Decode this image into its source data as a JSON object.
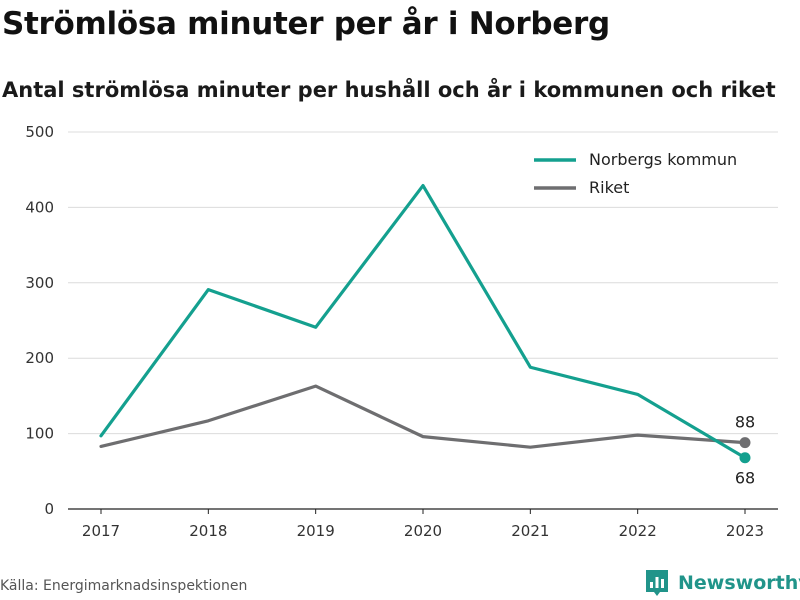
{
  "title": "Strömlösa minuter per år i Norberg",
  "subtitle": "Antal strömlösa minuter per hushåll och år i kommunen och riket",
  "source": "Källa: Energimarknadsinspektionen",
  "brand": {
    "name": "Newsworthy",
    "icon": "newsworthy-logo-icon",
    "color": "#21948a"
  },
  "chart_data": {
    "type": "line",
    "x": [
      "2017",
      "2018",
      "2019",
      "2020",
      "2021",
      "2022",
      "2023"
    ],
    "ylim": [
      0,
      500
    ],
    "yticks": [
      0,
      100,
      200,
      300,
      400,
      500
    ],
    "grid": true,
    "legend_position": "top-right",
    "series": [
      {
        "name": "Norbergs kommun",
        "color": "#14a08f",
        "values": [
          97,
          291,
          241,
          429,
          188,
          152,
          68
        ]
      },
      {
        "name": "Riket",
        "color": "#6e6e70",
        "values": [
          83,
          117,
          163,
          96,
          82,
          98,
          88
        ]
      }
    ],
    "end_labels": [
      {
        "series": "Riket",
        "text": "88",
        "position": "above"
      },
      {
        "series": "Norbergs kommun",
        "text": "68",
        "position": "below"
      }
    ]
  }
}
